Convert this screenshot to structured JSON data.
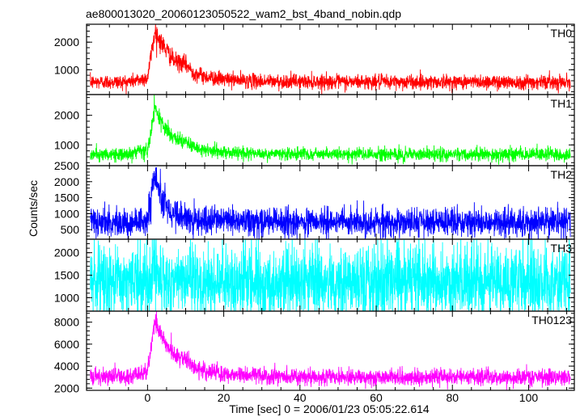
{
  "chart_data": {
    "type": "line",
    "title": "ae800013020_20060123050522_wam2_bst_4band_nobin.qdp",
    "xlabel": "Time [sec] 0 = 2006/01/23 05:05:22.614",
    "ylabel": "Counts/sec",
    "xlim": [
      -16,
      112
    ],
    "xticks": [
      0,
      20,
      40,
      60,
      80,
      100
    ],
    "panels": [
      {
        "name": "TH0",
        "color": "#ff0000",
        "ylim": [
          100,
          2650
        ],
        "yticks": [
          1000,
          2000
        ],
        "baseline": 550,
        "noise": 130,
        "peak_time": 2.5,
        "peak_value": 2500,
        "secondary_time": 10,
        "secondary_value": 1200,
        "decay": 9,
        "x": [
          -15,
          -5,
          0,
          1,
          2,
          3,
          5,
          7,
          9,
          10,
          12,
          15,
          20,
          30,
          50,
          80,
          111
        ],
        "y": [
          550,
          560,
          700,
          1600,
          2400,
          2100,
          1700,
          1300,
          1250,
          1200,
          900,
          750,
          650,
          580,
          560,
          560,
          560
        ]
      },
      {
        "name": "TH1",
        "color": "#00ff00",
        "ylim": [
          300,
          2700
        ],
        "yticks": [
          1000,
          2000
        ],
        "baseline": 680,
        "noise": 110,
        "peak_time": 2.5,
        "peak_value": 2450,
        "secondary_time": 10,
        "secondary_value": 1200,
        "decay": 9,
        "x": [
          -15,
          -5,
          0,
          1,
          2,
          3,
          5,
          7,
          9,
          10,
          12,
          15,
          20,
          30,
          50,
          80,
          111
        ],
        "y": [
          670,
          680,
          800,
          1500,
          2300,
          1900,
          1500,
          1200,
          1150,
          1150,
          900,
          800,
          750,
          700,
          680,
          680,
          680
        ]
      },
      {
        "name": "TH2",
        "color": "#0000ff",
        "ylim": [
          200,
          2500
        ],
        "yticks": [
          500,
          1000,
          1500,
          2000
        ],
        "ylabels_extra": [
          2500
        ],
        "baseline": 720,
        "noise": 220,
        "peak_time": 2.2,
        "peak_value": 2400,
        "secondary_time": 10,
        "secondary_value": 1000,
        "decay": 6,
        "x": [
          -15,
          -5,
          0,
          1,
          2,
          3,
          5,
          7,
          10,
          15,
          30,
          60,
          111
        ],
        "y": [
          720,
          720,
          800,
          1500,
          2300,
          1700,
          1200,
          1000,
          900,
          780,
          730,
          720,
          720
        ]
      },
      {
        "name": "TH3",
        "color": "#00ffff",
        "ylim": [
          700,
          2300
        ],
        "yticks": [
          1000,
          1500,
          2000
        ],
        "baseline": 1350,
        "noise": 420,
        "peak_time": 2,
        "peak_value": 2000,
        "secondary_time": 10,
        "secondary_value": 1400,
        "decay": 3,
        "x": [
          -15,
          0,
          2,
          5,
          111
        ],
        "y": [
          1350,
          1350,
          1500,
          1350,
          1350
        ]
      },
      {
        "name": "TH0123",
        "color": "#ff00ff",
        "ylim": [
          1800,
          9000
        ],
        "yticks": [
          2000,
          4000,
          6000,
          8000
        ],
        "baseline": 3000,
        "noise": 380,
        "peak_time": 2.3,
        "peak_value": 8600,
        "secondary_time": 10,
        "secondary_value": 5000,
        "decay": 8,
        "x": [
          -15,
          -5,
          0,
          1,
          2,
          3,
          5,
          7,
          9,
          10,
          12,
          15,
          20,
          30,
          50,
          80,
          111
        ],
        "y": [
          3000,
          3100,
          3500,
          6000,
          8200,
          7200,
          6000,
          5000,
          4800,
          4600,
          3900,
          3600,
          3300,
          3100,
          3000,
          3000,
          3000
        ]
      }
    ],
    "grid": false
  }
}
